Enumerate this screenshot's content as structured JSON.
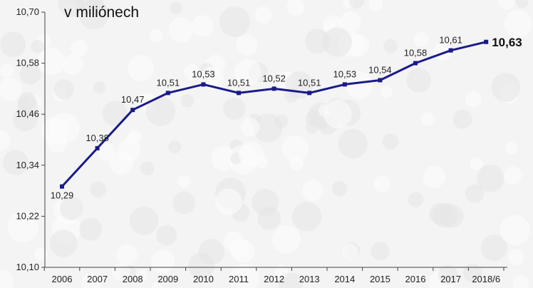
{
  "chart_data": {
    "type": "line",
    "unit_label": "v miliónech",
    "categories": [
      "2006",
      "2007",
      "2008",
      "2009",
      "2010",
      "2011",
      "2012",
      "2013",
      "2014",
      "2015",
      "2016",
      "2017",
      "2018/6"
    ],
    "series": [
      {
        "values": [
          10.29,
          10.38,
          10.47,
          10.51,
          10.53,
          10.51,
          10.52,
          10.51,
          10.53,
          10.54,
          10.58,
          10.61,
          10.63
        ],
        "value_labels": [
          "10,29",
          "10,38",
          "10,47",
          "10,51",
          "10,53",
          "10,51",
          "10,52",
          "10,51",
          "10,53",
          "10,54",
          "10,58",
          "10,61",
          "10,63"
        ],
        "color": "#1a1a8c"
      }
    ],
    "ylim": [
      10.1,
      10.7
    ],
    "yticks": [
      10.1,
      10.22,
      10.34,
      10.46,
      10.58,
      10.7
    ],
    "ytick_labels": [
      "10,10",
      "10,22",
      "10,34",
      "10,46",
      "10,58",
      "10,70"
    ],
    "grid": false,
    "highlight_last_point": true
  }
}
